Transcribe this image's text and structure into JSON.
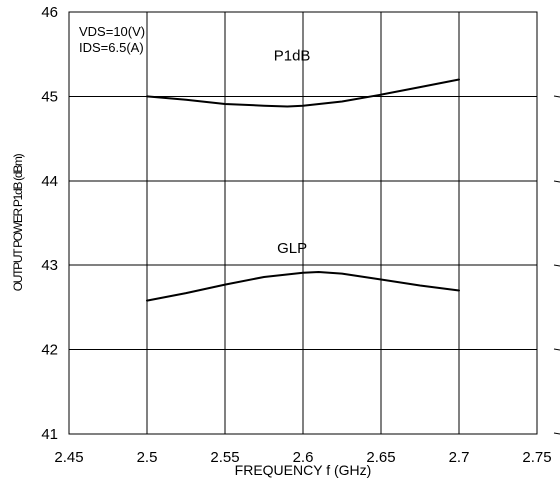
{
  "chart_data": {
    "type": "line",
    "xlabel": "FREQUENCY f (GHz)",
    "ylabel": "OUTPUT POWER P1dB (dBm)",
    "xlim": [
      2.45,
      2.75
    ],
    "ylim": [
      41,
      46
    ],
    "x_ticks": [
      "2.45",
      "2.5",
      "2.55",
      "2.6",
      "2.65",
      "2.7",
      "2.75"
    ],
    "y_ticks": [
      "41",
      "42",
      "43",
      "44",
      "45",
      "46"
    ],
    "grid": true,
    "conditions": [
      "VDS=10(V)",
      "IDS=6.5(A)"
    ],
    "series": [
      {
        "name": "P1dB",
        "x": [
          2.5,
          2.525,
          2.55,
          2.575,
          2.59,
          2.6,
          2.625,
          2.65,
          2.675,
          2.7
        ],
        "values": [
          45.0,
          44.96,
          44.91,
          44.89,
          44.88,
          44.89,
          44.94,
          45.02,
          45.11,
          45.2
        ]
      },
      {
        "name": "GLP",
        "x": [
          2.5,
          2.525,
          2.55,
          2.575,
          2.6,
          2.61,
          2.625,
          2.65,
          2.675,
          2.7
        ],
        "values": [
          42.58,
          42.67,
          42.77,
          42.86,
          42.91,
          42.92,
          42.9,
          42.83,
          42.76,
          42.7
        ]
      }
    ]
  }
}
